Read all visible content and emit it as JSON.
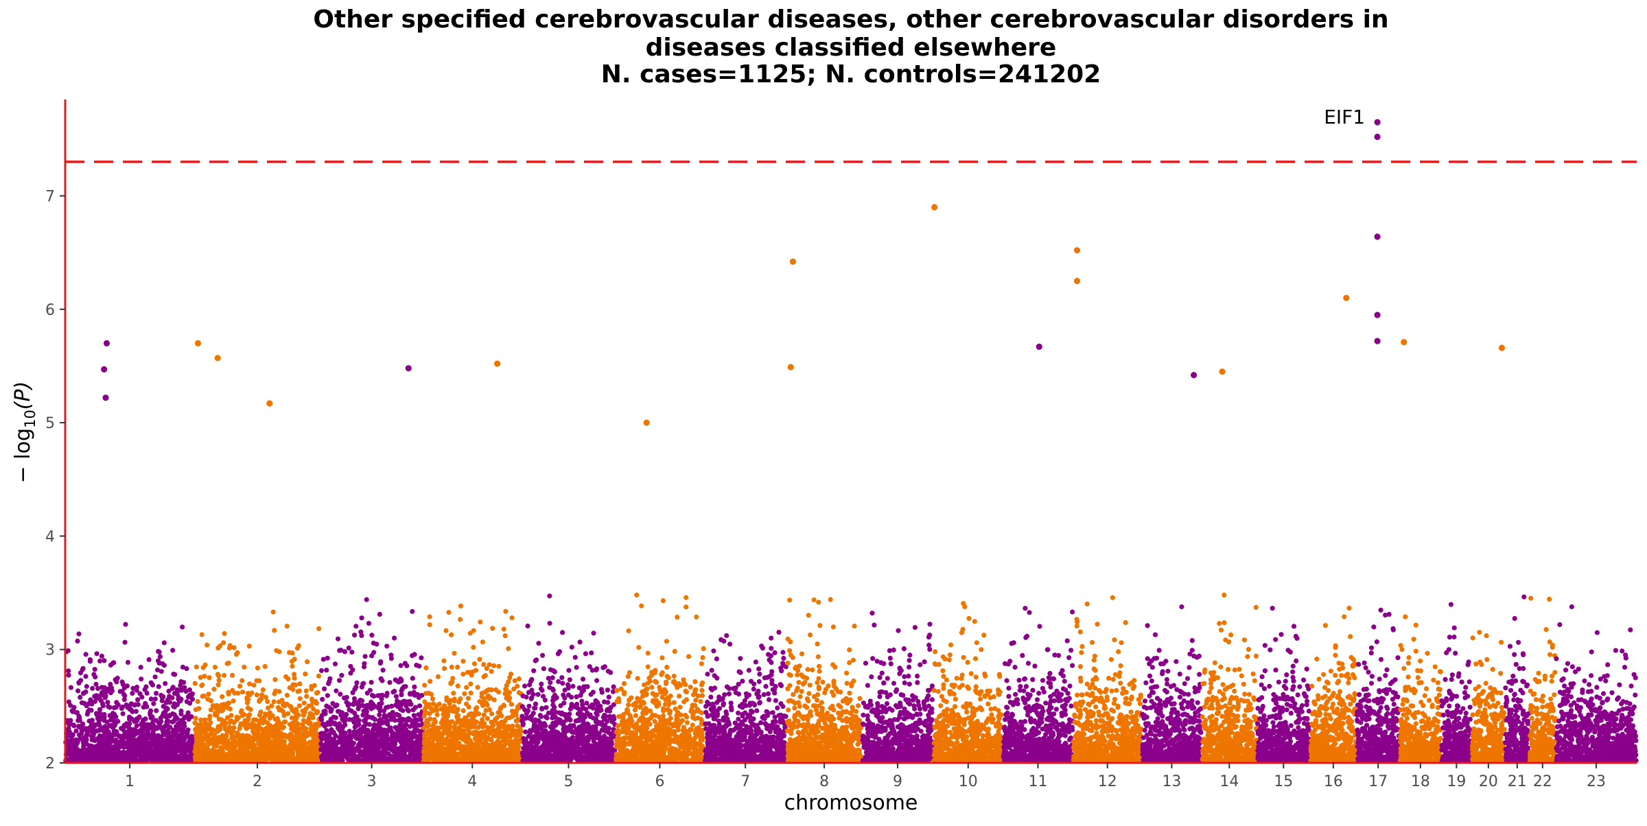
{
  "chart_data": {
    "type": "scatter",
    "title_lines": [
      "Other specified cerebrovascular diseases, other cerebrovascular disorders in",
      "diseases classified elsewhere",
      "N. cases=1125; N. controls=241202"
    ],
    "xlabel": "chromosome",
    "ylabel_main": "− log",
    "ylabel_sub": "10",
    "ylabel_rest": "(P)",
    "ylim": [
      2,
      7.85
    ],
    "y_ticks": [
      "2",
      "3",
      "4",
      "5",
      "6",
      "7"
    ],
    "significance_threshold": 7.3,
    "colors": {
      "odd": "#8b008b",
      "even": "#ee7600",
      "threshold": "#e31a1c",
      "axis": "#e31a1c"
    },
    "chromosomes": [
      {
        "label": "1",
        "start": 0,
        "end": 249
      },
      {
        "label": "2",
        "start": 249,
        "end": 492
      },
      {
        "label": "3",
        "start": 492,
        "end": 690
      },
      {
        "label": "4",
        "start": 690,
        "end": 880
      },
      {
        "label": "5",
        "start": 880,
        "end": 1061
      },
      {
        "label": "6",
        "start": 1061,
        "end": 1232
      },
      {
        "label": "7",
        "start": 1232,
        "end": 1391
      },
      {
        "label": "8",
        "start": 1391,
        "end": 1536
      },
      {
        "label": "9",
        "start": 1536,
        "end": 1674
      },
      {
        "label": "10",
        "start": 1674,
        "end": 1808
      },
      {
        "label": "11",
        "start": 1808,
        "end": 1943
      },
      {
        "label": "12",
        "start": 1943,
        "end": 2076
      },
      {
        "label": "13",
        "start": 2076,
        "end": 2191
      },
      {
        "label": "14",
        "start": 2191,
        "end": 2298
      },
      {
        "label": "15",
        "start": 2298,
        "end": 2400
      },
      {
        "label": "16",
        "start": 2400,
        "end": 2490
      },
      {
        "label": "17",
        "start": 2490,
        "end": 2573
      },
      {
        "label": "18",
        "start": 2573,
        "end": 2653
      },
      {
        "label": "19",
        "start": 2653,
        "end": 2712
      },
      {
        "label": "20",
        "start": 2712,
        "end": 2776
      },
      {
        "label": "21",
        "start": 2776,
        "end": 2823
      },
      {
        "label": "22",
        "start": 2823,
        "end": 2874
      },
      {
        "label": "23",
        "start": 2874,
        "end": 3030
      }
    ],
    "top_hits": [
      {
        "chr": "1",
        "pos": 80,
        "p": 5.7
      },
      {
        "chr": "1",
        "pos": 75,
        "p": 5.47
      },
      {
        "chr": "1",
        "pos": 78,
        "p": 5.22
      },
      {
        "chr": "2",
        "pos": 7,
        "p": 5.7
      },
      {
        "chr": "2",
        "pos": 45,
        "p": 5.57
      },
      {
        "chr": "2",
        "pos": 145,
        "p": 5.17
      },
      {
        "chr": "3",
        "pos": 170,
        "p": 5.48
      },
      {
        "chr": "4",
        "pos": 143,
        "p": 5.52
      },
      {
        "chr": "6",
        "pos": 60,
        "p": 5.0
      },
      {
        "chr": "8",
        "pos": 12,
        "p": 6.42
      },
      {
        "chr": "8",
        "pos": 8,
        "p": 5.49
      },
      {
        "chr": "10",
        "pos": 2,
        "p": 6.9
      },
      {
        "chr": "11",
        "pos": 70,
        "p": 5.67
      },
      {
        "chr": "12",
        "pos": 8,
        "p": 6.52
      },
      {
        "chr": "12",
        "pos": 8,
        "p": 6.25
      },
      {
        "chr": "13",
        "pos": 100,
        "p": 5.42
      },
      {
        "chr": "14",
        "pos": 40,
        "p": 5.45
      },
      {
        "chr": "16",
        "pos": 70,
        "p": 6.1
      },
      {
        "chr": "17",
        "pos": 40,
        "p": 7.65
      },
      {
        "chr": "17",
        "pos": 40,
        "p": 7.52
      },
      {
        "chr": "17",
        "pos": 40,
        "p": 6.64
      },
      {
        "chr": "17",
        "pos": 40,
        "p": 5.95
      },
      {
        "chr": "17",
        "pos": 40,
        "p": 5.72
      },
      {
        "chr": "18",
        "pos": 8,
        "p": 5.71
      },
      {
        "chr": "20",
        "pos": 58,
        "p": 5.66
      }
    ],
    "annotations": [
      {
        "text": "EIF1",
        "chr": "17",
        "pos": 40,
        "p": 7.65
      }
    ],
    "grid": false,
    "legend": "none"
  }
}
